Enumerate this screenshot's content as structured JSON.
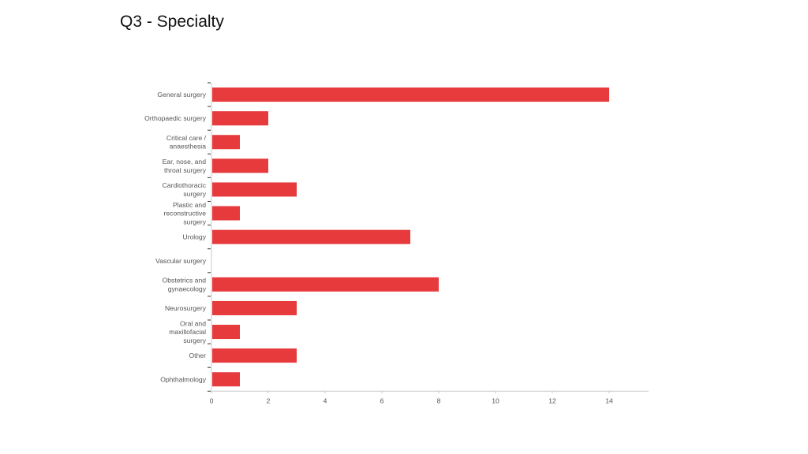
{
  "slide": {
    "title": "Q3 - Specialty"
  },
  "colors": {
    "bar": "#e63a3c",
    "axis": "#c8c8c8",
    "label": "#555555"
  },
  "chart_data": {
    "type": "bar",
    "orientation": "horizontal",
    "title": "",
    "xlabel": "",
    "ylabel": "",
    "categories": [
      [
        "General surgery"
      ],
      [
        "Orthopaedic surgery"
      ],
      [
        "Critical care /",
        "anaesthesia"
      ],
      [
        "Ear, nose, and",
        "throat surgery"
      ],
      [
        "Cardiothoracic",
        "surgery"
      ],
      [
        "Plastic and",
        "reconstructive",
        "surgery"
      ],
      [
        "Urology"
      ],
      [
        "Vascular surgery"
      ],
      [
        "Obstetrics and",
        "gynaecology"
      ],
      [
        "Neurosurgery"
      ],
      [
        "Oral and",
        "maxillofacial",
        "surgery"
      ],
      [
        "Other"
      ],
      [
        "Ophthalmology"
      ]
    ],
    "values": [
      14,
      2,
      1,
      2,
      3,
      1,
      7,
      0,
      8,
      3,
      1,
      3,
      1
    ],
    "xlim": [
      0,
      15.4
    ],
    "xticks": [
      0,
      2,
      4,
      6,
      8,
      10,
      12,
      14
    ],
    "grid": false,
    "legend": "none"
  }
}
